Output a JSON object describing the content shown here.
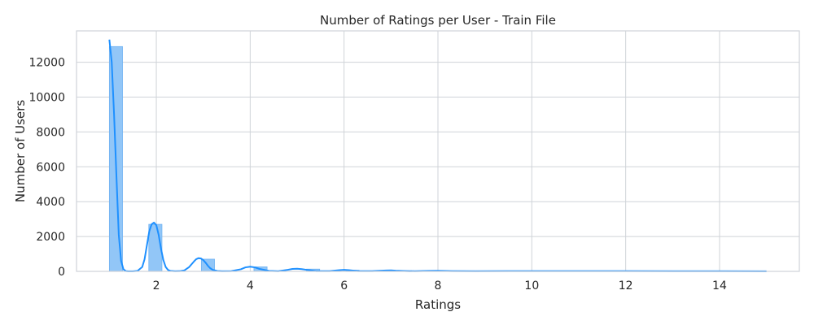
{
  "chart_data": {
    "type": "bar",
    "title": "Number of Ratings per User - Train File",
    "xlabel": "Ratings",
    "ylabel": "Number of Users",
    "xlim": [
      0.3,
      15.7
    ],
    "ylim": [
      0,
      13800
    ],
    "xticks": [
      2,
      4,
      6,
      8,
      10,
      12,
      14
    ],
    "yticks": [
      0,
      2000,
      4000,
      6000,
      8000,
      10000,
      12000
    ],
    "grid": true,
    "colors": {
      "bar_fill": "#92c6f7",
      "bar_stroke": "#6fb2f2",
      "kde_line": "#1e90ff",
      "grid": "#cfd3d8",
      "frame": "#cfd3d8"
    },
    "histogram": {
      "bin_start": 1,
      "bin_width": 0.28,
      "values": [
        12900,
        0,
        0,
        2700,
        0,
        0,
        0,
        700,
        0,
        0,
        0,
        260,
        0,
        0,
        0,
        130,
        0,
        0,
        70,
        0,
        0,
        0,
        45,
        0,
        0,
        0,
        30,
        0,
        0,
        0,
        25,
        0,
        0,
        18,
        0,
        0,
        0,
        14,
        0,
        0,
        0,
        12,
        0,
        0,
        0,
        10,
        0,
        0,
        8,
        0
      ]
    },
    "kde": {
      "x": [
        1.0,
        1.05,
        1.1,
        1.15,
        1.2,
        1.25,
        1.3,
        1.35,
        1.4,
        1.5,
        1.6,
        1.7,
        1.75,
        1.8,
        1.85,
        1.9,
        1.95,
        2.0,
        2.05,
        2.1,
        2.15,
        2.2,
        2.25,
        2.3,
        2.4,
        2.5,
        2.6,
        2.7,
        2.8,
        2.85,
        2.9,
        2.95,
        3.0,
        3.05,
        3.1,
        3.15,
        3.2,
        3.3,
        3.4,
        3.6,
        3.8,
        3.9,
        4.0,
        4.1,
        4.2,
        4.4,
        4.6,
        4.8,
        4.9,
        5.0,
        5.1,
        5.2,
        5.4,
        5.7,
        5.9,
        6.0,
        6.1,
        6.3,
        6.6,
        6.9,
        7.0,
        7.1,
        7.4,
        7.8,
        8.0,
        8.3,
        8.8,
        9.5,
        10.0,
        11.0,
        12.0,
        13.0,
        14.0,
        15.0
      ],
      "y": [
        13300,
        12000,
        9000,
        5500,
        2100,
        600,
        120,
        20,
        5,
        5,
        30,
        250,
        700,
        1500,
        2300,
        2700,
        2800,
        2650,
        2100,
        1300,
        650,
        250,
        80,
        30,
        10,
        15,
        60,
        250,
        560,
        700,
        760,
        740,
        650,
        500,
        320,
        180,
        90,
        25,
        10,
        20,
        120,
        230,
        270,
        230,
        140,
        30,
        10,
        90,
        140,
        150,
        130,
        90,
        20,
        15,
        70,
        90,
        70,
        15,
        15,
        55,
        60,
        40,
        10,
        30,
        35,
        15,
        10,
        15,
        20,
        15,
        15,
        12,
        12,
        8
      ]
    }
  }
}
